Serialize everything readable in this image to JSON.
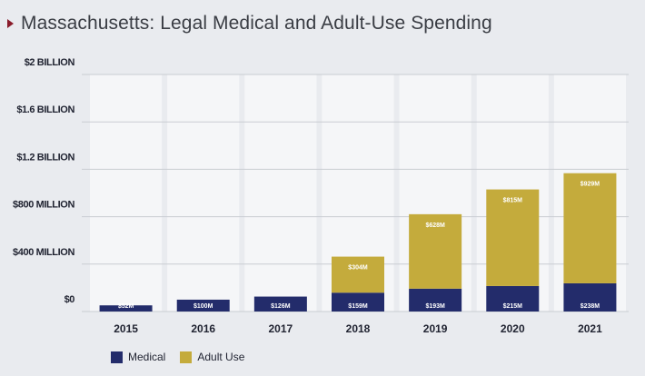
{
  "title": "Massachusetts: Legal Medical and Adult-Use Spending",
  "colors": {
    "medical": "#232c6b",
    "adult_use": "#c4ab3c",
    "column_bg": "#f5f6f8",
    "grid": "#c9ccd2",
    "accent": "#8a1c2b"
  },
  "legend": {
    "medical": "Medical",
    "adult_use": "Adult Use"
  },
  "chart_data": {
    "type": "bar",
    "stacked": true,
    "categories": [
      "2015",
      "2016",
      "2017",
      "2018",
      "2019",
      "2020",
      "2021"
    ],
    "series": [
      {
        "name": "Medical",
        "values": [
          52,
          100,
          126,
          159,
          193,
          215,
          238
        ],
        "labels": [
          "$52M",
          "$100M",
          "$126M",
          "$159M",
          "$193M",
          "$215M",
          "$238M"
        ]
      },
      {
        "name": "Adult Use",
        "values": [
          0,
          0,
          0,
          304,
          628,
          815,
          929
        ],
        "labels": [
          "",
          "",
          "",
          "$304M",
          "$628M",
          "$815M",
          "$929M"
        ]
      }
    ],
    "ylim": [
      0,
      2000
    ],
    "yticks": [
      0,
      400,
      800,
      1200,
      1600,
      2000
    ],
    "ytick_labels": [
      "$0",
      "$400 MILLION",
      "$800 MILLION",
      "$1.2 BILLION",
      "$1.6 BILLION",
      "$2 BILLION"
    ],
    "grid": true,
    "legend_position": "bottom-left"
  }
}
